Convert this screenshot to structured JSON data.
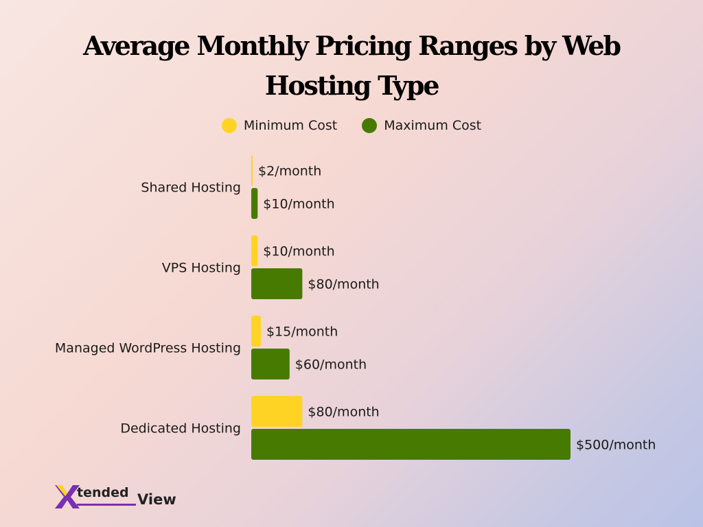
{
  "chart_data": {
    "type": "bar",
    "orientation": "horizontal",
    "title": "Average Monthly Pricing Ranges by Web Hosting Type",
    "categories": [
      "Shared Hosting",
      "VPS Hosting",
      "Managed WordPress Hosting",
      "Dedicated Hosting"
    ],
    "series": [
      {
        "name": "Minimum Cost",
        "color": "#ffd324",
        "values": [
          2,
          10,
          15,
          80
        ],
        "labels": [
          "$2/month",
          "$10/month",
          "$15/month",
          "$80/month"
        ]
      },
      {
        "name": "Maximum Cost",
        "color": "#477a00",
        "values": [
          10,
          80,
          60,
          500
        ],
        "labels": [
          "$10/month",
          "$80/month",
          "$60/month",
          "$500/month"
        ]
      }
    ],
    "xlim": [
      0,
      500
    ],
    "legend": "top-center",
    "grid": false
  },
  "logo": {
    "text_a": "tended",
    "text_b": "View",
    "mark": "X"
  }
}
